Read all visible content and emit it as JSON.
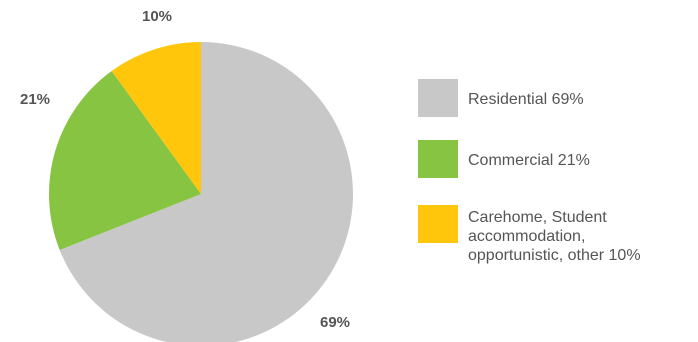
{
  "chart_data": {
    "type": "pie",
    "slices": [
      {
        "value": 69,
        "data_label": "69%",
        "color": "#c8c8c8",
        "legend_lines": [
          "Residential  69%"
        ]
      },
      {
        "value": 21,
        "data_label": "21%",
        "color": "#86c441",
        "legend_lines": [
          "Commercial  21%"
        ]
      },
      {
        "value": 10,
        "data_label": "10%",
        "color": "#ffc60b",
        "legend_lines": [
          "Carehome, Student",
          "accommodation,",
          "opportunistic, other 10%"
        ]
      }
    ],
    "start": "12 o'clock",
    "direction": "clockwise",
    "legend_position": "right"
  }
}
